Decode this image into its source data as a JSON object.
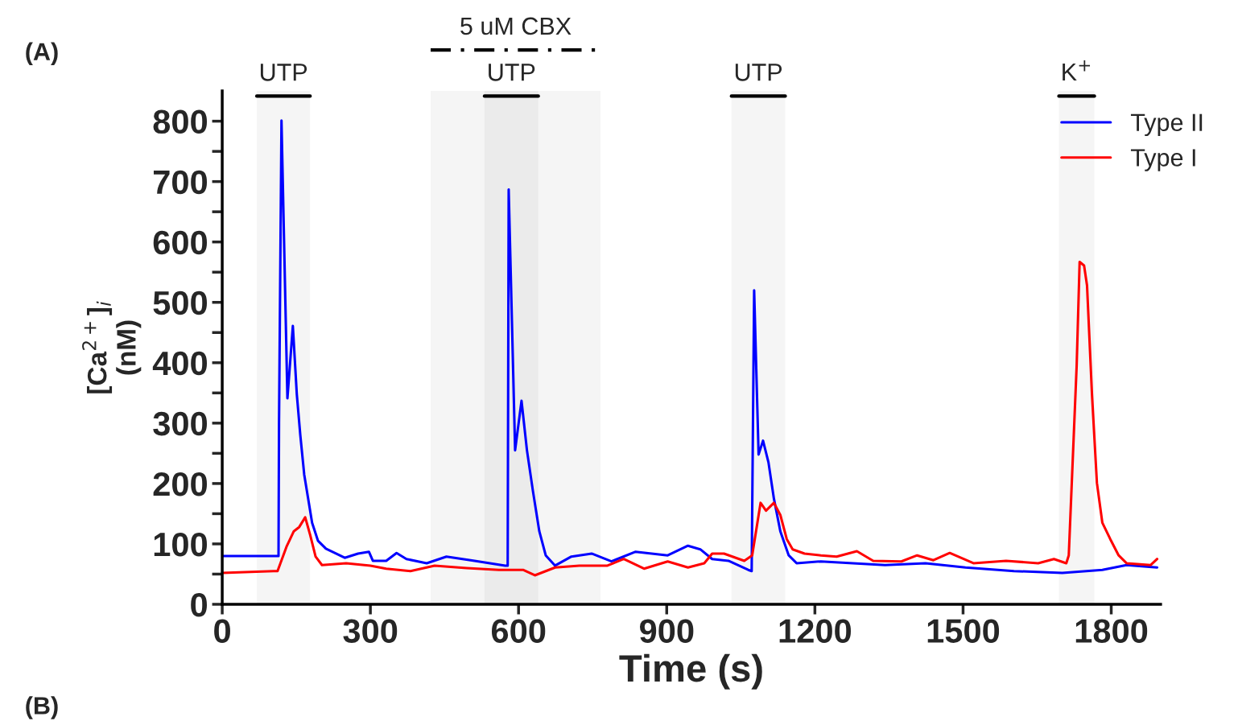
{
  "chart_data": {
    "type": "line",
    "xlabel": "Time (s)",
    "ylabel": "[Ca$^{2+}$]$_{i}$\n(nM)",
    "annotations": [
      "(A)",
      "(B)"
    ],
    "bands": [
      {
        "axis": "x",
        "from": 70,
        "to": 178,
        "label": "UTP",
        "color": "#000000"
      },
      {
        "axis": "x",
        "from": 531,
        "to": 640,
        "label": "UTP",
        "color": "#000000"
      },
      {
        "axis": "x",
        "from": 422,
        "to": 766,
        "label": "5 uM CBX",
        "color": "#000000"
      },
      {
        "axis": "x",
        "from": 1031,
        "to": 1140,
        "label": "UTP",
        "color": "#000000"
      },
      {
        "axis": "x",
        "from": 1694,
        "to": 1766,
        "label": "K$^{+}$",
        "color": "#000000"
      }
    ],
    "xlim": [
      0,
      1900
    ],
    "xticks": [
      0,
      300,
      600,
      900,
      1200,
      1500,
      1800
    ],
    "ylim": [
      0,
      850
    ],
    "yticks": [
      0,
      {
        "value": 50,
        "label": null
      },
      100,
      {
        "value": 150,
        "label": null
      },
      200,
      {
        "value": 250,
        "label": null
      },
      300,
      {
        "value": 350,
        "label": null
      },
      400,
      {
        "value": 450,
        "label": null
      },
      500,
      {
        "value": 550,
        "label": null
      },
      600,
      {
        "value": 650,
        "label": null
      },
      700,
      {
        "value": 750,
        "label": null
      },
      800
    ],
    "grid": false,
    "legend": "top right",
    "line_style": "solid",
    "marker": "none",
    "series": [
      {
        "name": "Type II",
        "color": "#0000ff",
        "x": [
          0,
          114,
          115,
          120,
          132,
          143,
          151,
          158,
          166,
          174,
          182,
          194,
          210,
          248,
          275,
          297,
          305,
          332,
          353,
          373,
          414,
          454,
          511,
          573,
          578,
          580,
          593,
          606,
          617,
          629,
          642,
          655,
          674,
          707,
          748,
          788,
          837,
          902,
          943,
          968,
          992,
          1025,
          1065,
          1072,
          1077,
          1086,
          1095,
          1106,
          1117,
          1130,
          1147,
          1163,
          1212,
          1277,
          1342,
          1424,
          1505,
          1603,
          1701,
          1782,
          1831,
          1893
        ],
        "values": [
          80,
          80,
          300,
          801,
          341,
          461,
          348,
          281,
          215,
          175,
          135,
          105,
          92,
          77,
          84,
          87,
          72,
          72,
          85,
          75,
          68,
          79,
          72,
          64,
          64,
          687,
          255,
          337,
          255,
          188,
          121,
          81,
          64,
          79,
          84,
          71,
          87,
          81,
          97,
          91,
          75,
          72,
          57,
          55,
          520,
          248,
          271,
          235,
          175,
          121,
          81,
          68,
          71,
          68,
          65,
          68,
          61,
          55,
          52,
          57,
          65,
          61
        ]
      },
      {
        "name": "Type I",
        "color": "#ff0000",
        "x": [
          0,
          104,
          112,
          130,
          145,
          156,
          168,
          178,
          189,
          202,
          251,
          300,
          332,
          381,
          430,
          495,
          560,
          609,
          633,
          674,
          723,
          780,
          813,
          854,
          902,
          943,
          976,
          992,
          1016,
          1057,
          1073,
          1090,
          1101,
          1117,
          1130,
          1143,
          1155,
          1179,
          1212,
          1244,
          1285,
          1318,
          1375,
          1407,
          1440,
          1473,
          1521,
          1587,
          1652,
          1684,
          1709,
          1714,
          1730,
          1736,
          1745,
          1751,
          1761,
          1771,
          1782,
          1798,
          1815,
          1831,
          1880,
          1893
        ],
        "values": [
          52,
          55,
          55,
          95,
          121,
          128,
          144,
          115,
          79,
          65,
          68,
          64,
          59,
          55,
          64,
          60,
          57,
          57,
          48,
          61,
          64,
          64,
          75,
          59,
          71,
          61,
          68,
          84,
          84,
          72,
          81,
          168,
          155,
          168,
          148,
          108,
          91,
          84,
          81,
          79,
          88,
          72,
          71,
          81,
          73,
          85,
          68,
          72,
          68,
          75,
          68,
          81,
          395,
          567,
          561,
          528,
          348,
          201,
          135,
          108,
          81,
          68,
          65,
          75
        ]
      }
    ]
  }
}
